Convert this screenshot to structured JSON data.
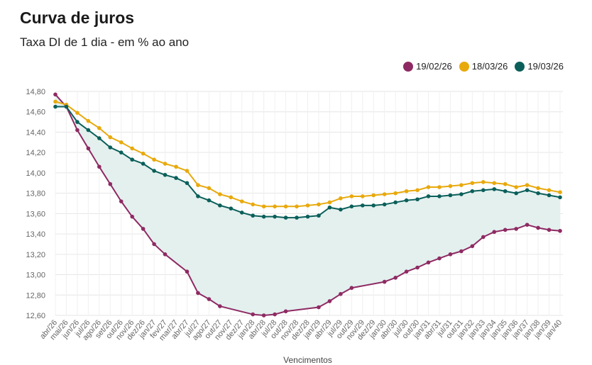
{
  "header": {
    "title": "Curva de juros",
    "subtitle": "Taxa DI de 1 dia - em % ao ano"
  },
  "chart_data": {
    "type": "line",
    "title": "Curva de juros",
    "subtitle": "Taxa DI de 1 dia - em % ao ano",
    "xlabel": "Vencimentos",
    "ylabel": "",
    "ylim": [
      12.6,
      14.8
    ],
    "yticks": [
      14.8,
      14.6,
      14.4,
      14.2,
      14.0,
      13.8,
      13.6,
      13.4,
      13.2,
      13.0,
      12.8,
      12.6
    ],
    "ytick_labels": [
      "14,80",
      "14,60",
      "14,40",
      "14,20",
      "14,00",
      "13,80",
      "13,60",
      "13,40",
      "13,20",
      "13,00",
      "12,80",
      "12,60"
    ],
    "categories": [
      "abr/26",
      "mai/26",
      "jun/26",
      "jul/26",
      "ago/26",
      "set/26",
      "out/26",
      "nov/26",
      "dez/26",
      "jan/27",
      "fev/27",
      "mar/27",
      "abr/27",
      "jul/27",
      "ago/27",
      "out/27",
      "nov/27",
      "dez/27",
      "jan/28",
      "abr/28",
      "jul/28",
      "out/28",
      "nov/28",
      "dez/28",
      "jan/29",
      "abr/29",
      "jul/29",
      "out/29",
      "nov/29",
      "dez/29",
      "jan/30",
      "abr/30",
      "jul/30",
      "out/30",
      "jan/31",
      "abr/31",
      "jul/31",
      "out/31",
      "jan/32",
      "jan/33",
      "jan/34",
      "jan/35",
      "jan/36",
      "jan/37",
      "jan/38",
      "jan/39",
      "jan/40"
    ],
    "fill_between": [
      "19/03/26",
      "19/02/26"
    ],
    "fill_color": "#e3f0ee",
    "legend_position": "top-right",
    "grid": true,
    "series": [
      {
        "name": "19/02/26",
        "color": "#8e2a63",
        "points": [
          [
            "abr/26",
            14.77
          ],
          [
            "mai/26",
            14.65
          ],
          [
            "jun/26",
            14.42
          ],
          [
            "jul/26",
            14.24
          ],
          [
            "ago/26",
            14.06
          ],
          [
            "set/26",
            13.89
          ],
          [
            "out/26",
            13.72
          ],
          [
            "nov/26",
            13.57
          ],
          [
            "dez/26",
            13.45
          ],
          [
            "jan/27",
            13.3
          ],
          [
            "fev/27",
            13.2
          ],
          [
            "abr/27",
            13.03
          ],
          [
            "jul/27",
            12.82
          ],
          [
            "ago/27",
            12.76
          ],
          [
            "out/27",
            12.69
          ],
          [
            "jan/28",
            12.61
          ],
          [
            "abr/28",
            12.6
          ],
          [
            "jul/28",
            12.61
          ],
          [
            "out/28",
            12.64
          ],
          [
            "jan/29",
            12.68
          ],
          [
            "abr/29",
            12.74
          ],
          [
            "jul/29",
            12.81
          ],
          [
            "out/29",
            12.87
          ],
          [
            "jan/30",
            12.93
          ],
          [
            "abr/30",
            12.97
          ],
          [
            "jul/30",
            13.03
          ],
          [
            "out/30",
            13.07
          ],
          [
            "jan/31",
            13.12
          ],
          [
            "abr/31",
            13.16
          ],
          [
            "jul/31",
            13.2
          ],
          [
            "out/31",
            13.23
          ],
          [
            "jan/32",
            13.28
          ],
          [
            "jan/33",
            13.37
          ],
          [
            "jan/34",
            13.42
          ],
          [
            "jan/35",
            13.44
          ],
          [
            "jan/36",
            13.45
          ],
          [
            "jan/37",
            13.49
          ],
          [
            "jan/38",
            13.46
          ],
          [
            "jan/39",
            13.44
          ],
          [
            "jan/40",
            13.43
          ]
        ]
      },
      {
        "name": "18/03/26",
        "color": "#e8a90c",
        "points": [
          [
            "abr/26",
            14.7
          ],
          [
            "mai/26",
            14.67
          ],
          [
            "jun/26",
            14.59
          ],
          [
            "jul/26",
            14.51
          ],
          [
            "ago/26",
            14.44
          ],
          [
            "set/26",
            14.35
          ],
          [
            "out/26",
            14.3
          ],
          [
            "nov/26",
            14.24
          ],
          [
            "dez/26",
            14.19
          ],
          [
            "jan/27",
            14.13
          ],
          [
            "fev/27",
            14.09
          ],
          [
            "mar/27",
            14.06
          ],
          [
            "abr/27",
            14.02
          ],
          [
            "jul/27",
            13.88
          ],
          [
            "ago/27",
            13.85
          ],
          [
            "out/27",
            13.79
          ],
          [
            "nov/27",
            13.76
          ],
          [
            "dez/27",
            13.72
          ],
          [
            "jan/28",
            13.69
          ],
          [
            "abr/28",
            13.67
          ],
          [
            "jul/28",
            13.67
          ],
          [
            "out/28",
            13.67
          ],
          [
            "nov/28",
            13.67
          ],
          [
            "dez/28",
            13.68
          ],
          [
            "jan/29",
            13.69
          ],
          [
            "abr/29",
            13.71
          ],
          [
            "jul/29",
            13.75
          ],
          [
            "out/29",
            13.77
          ],
          [
            "nov/29",
            13.77
          ],
          [
            "dez/29",
            13.78
          ],
          [
            "jan/30",
            13.79
          ],
          [
            "abr/30",
            13.8
          ],
          [
            "jul/30",
            13.82
          ],
          [
            "out/30",
            13.83
          ],
          [
            "jan/31",
            13.86
          ],
          [
            "abr/31",
            13.86
          ],
          [
            "jul/31",
            13.87
          ],
          [
            "out/31",
            13.88
          ],
          [
            "jan/32",
            13.9
          ],
          [
            "jan/33",
            13.91
          ],
          [
            "jan/34",
            13.9
          ],
          [
            "jan/35",
            13.89
          ],
          [
            "jan/36",
            13.86
          ],
          [
            "jan/37",
            13.88
          ],
          [
            "jan/38",
            13.85
          ],
          [
            "jan/39",
            13.83
          ],
          [
            "jan/40",
            13.81
          ]
        ]
      },
      {
        "name": "19/03/26",
        "color": "#0b5f5a",
        "points": [
          [
            "abr/26",
            14.65
          ],
          [
            "mai/26",
            14.65
          ],
          [
            "jun/26",
            14.5
          ],
          [
            "jul/26",
            14.42
          ],
          [
            "ago/26",
            14.34
          ],
          [
            "set/26",
            14.25
          ],
          [
            "out/26",
            14.2
          ],
          [
            "nov/26",
            14.13
          ],
          [
            "dez/26",
            14.09
          ],
          [
            "jan/27",
            14.02
          ],
          [
            "fev/27",
            13.98
          ],
          [
            "mar/27",
            13.95
          ],
          [
            "abr/27",
            13.9
          ],
          [
            "jul/27",
            13.77
          ],
          [
            "ago/27",
            13.73
          ],
          [
            "out/27",
            13.68
          ],
          [
            "nov/27",
            13.65
          ],
          [
            "dez/27",
            13.61
          ],
          [
            "jan/28",
            13.58
          ],
          [
            "abr/28",
            13.57
          ],
          [
            "jul/28",
            13.57
          ],
          [
            "out/28",
            13.56
          ],
          [
            "nov/28",
            13.56
          ],
          [
            "dez/28",
            13.57
          ],
          [
            "jan/29",
            13.58
          ],
          [
            "abr/29",
            13.66
          ],
          [
            "jul/29",
            13.64
          ],
          [
            "out/29",
            13.67
          ],
          [
            "nov/29",
            13.68
          ],
          [
            "dez/29",
            13.68
          ],
          [
            "jan/30",
            13.69
          ],
          [
            "abr/30",
            13.71
          ],
          [
            "jul/30",
            13.73
          ],
          [
            "out/30",
            13.74
          ],
          [
            "jan/31",
            13.77
          ],
          [
            "abr/31",
            13.77
          ],
          [
            "jul/31",
            13.78
          ],
          [
            "out/31",
            13.79
          ],
          [
            "jan/32",
            13.82
          ],
          [
            "jan/33",
            13.83
          ],
          [
            "jan/34",
            13.84
          ],
          [
            "jan/35",
            13.82
          ],
          [
            "jan/36",
            13.8
          ],
          [
            "jan/37",
            13.83
          ],
          [
            "jan/38",
            13.8
          ],
          [
            "jan/39",
            13.78
          ],
          [
            "jan/40",
            13.76
          ]
        ]
      }
    ]
  }
}
